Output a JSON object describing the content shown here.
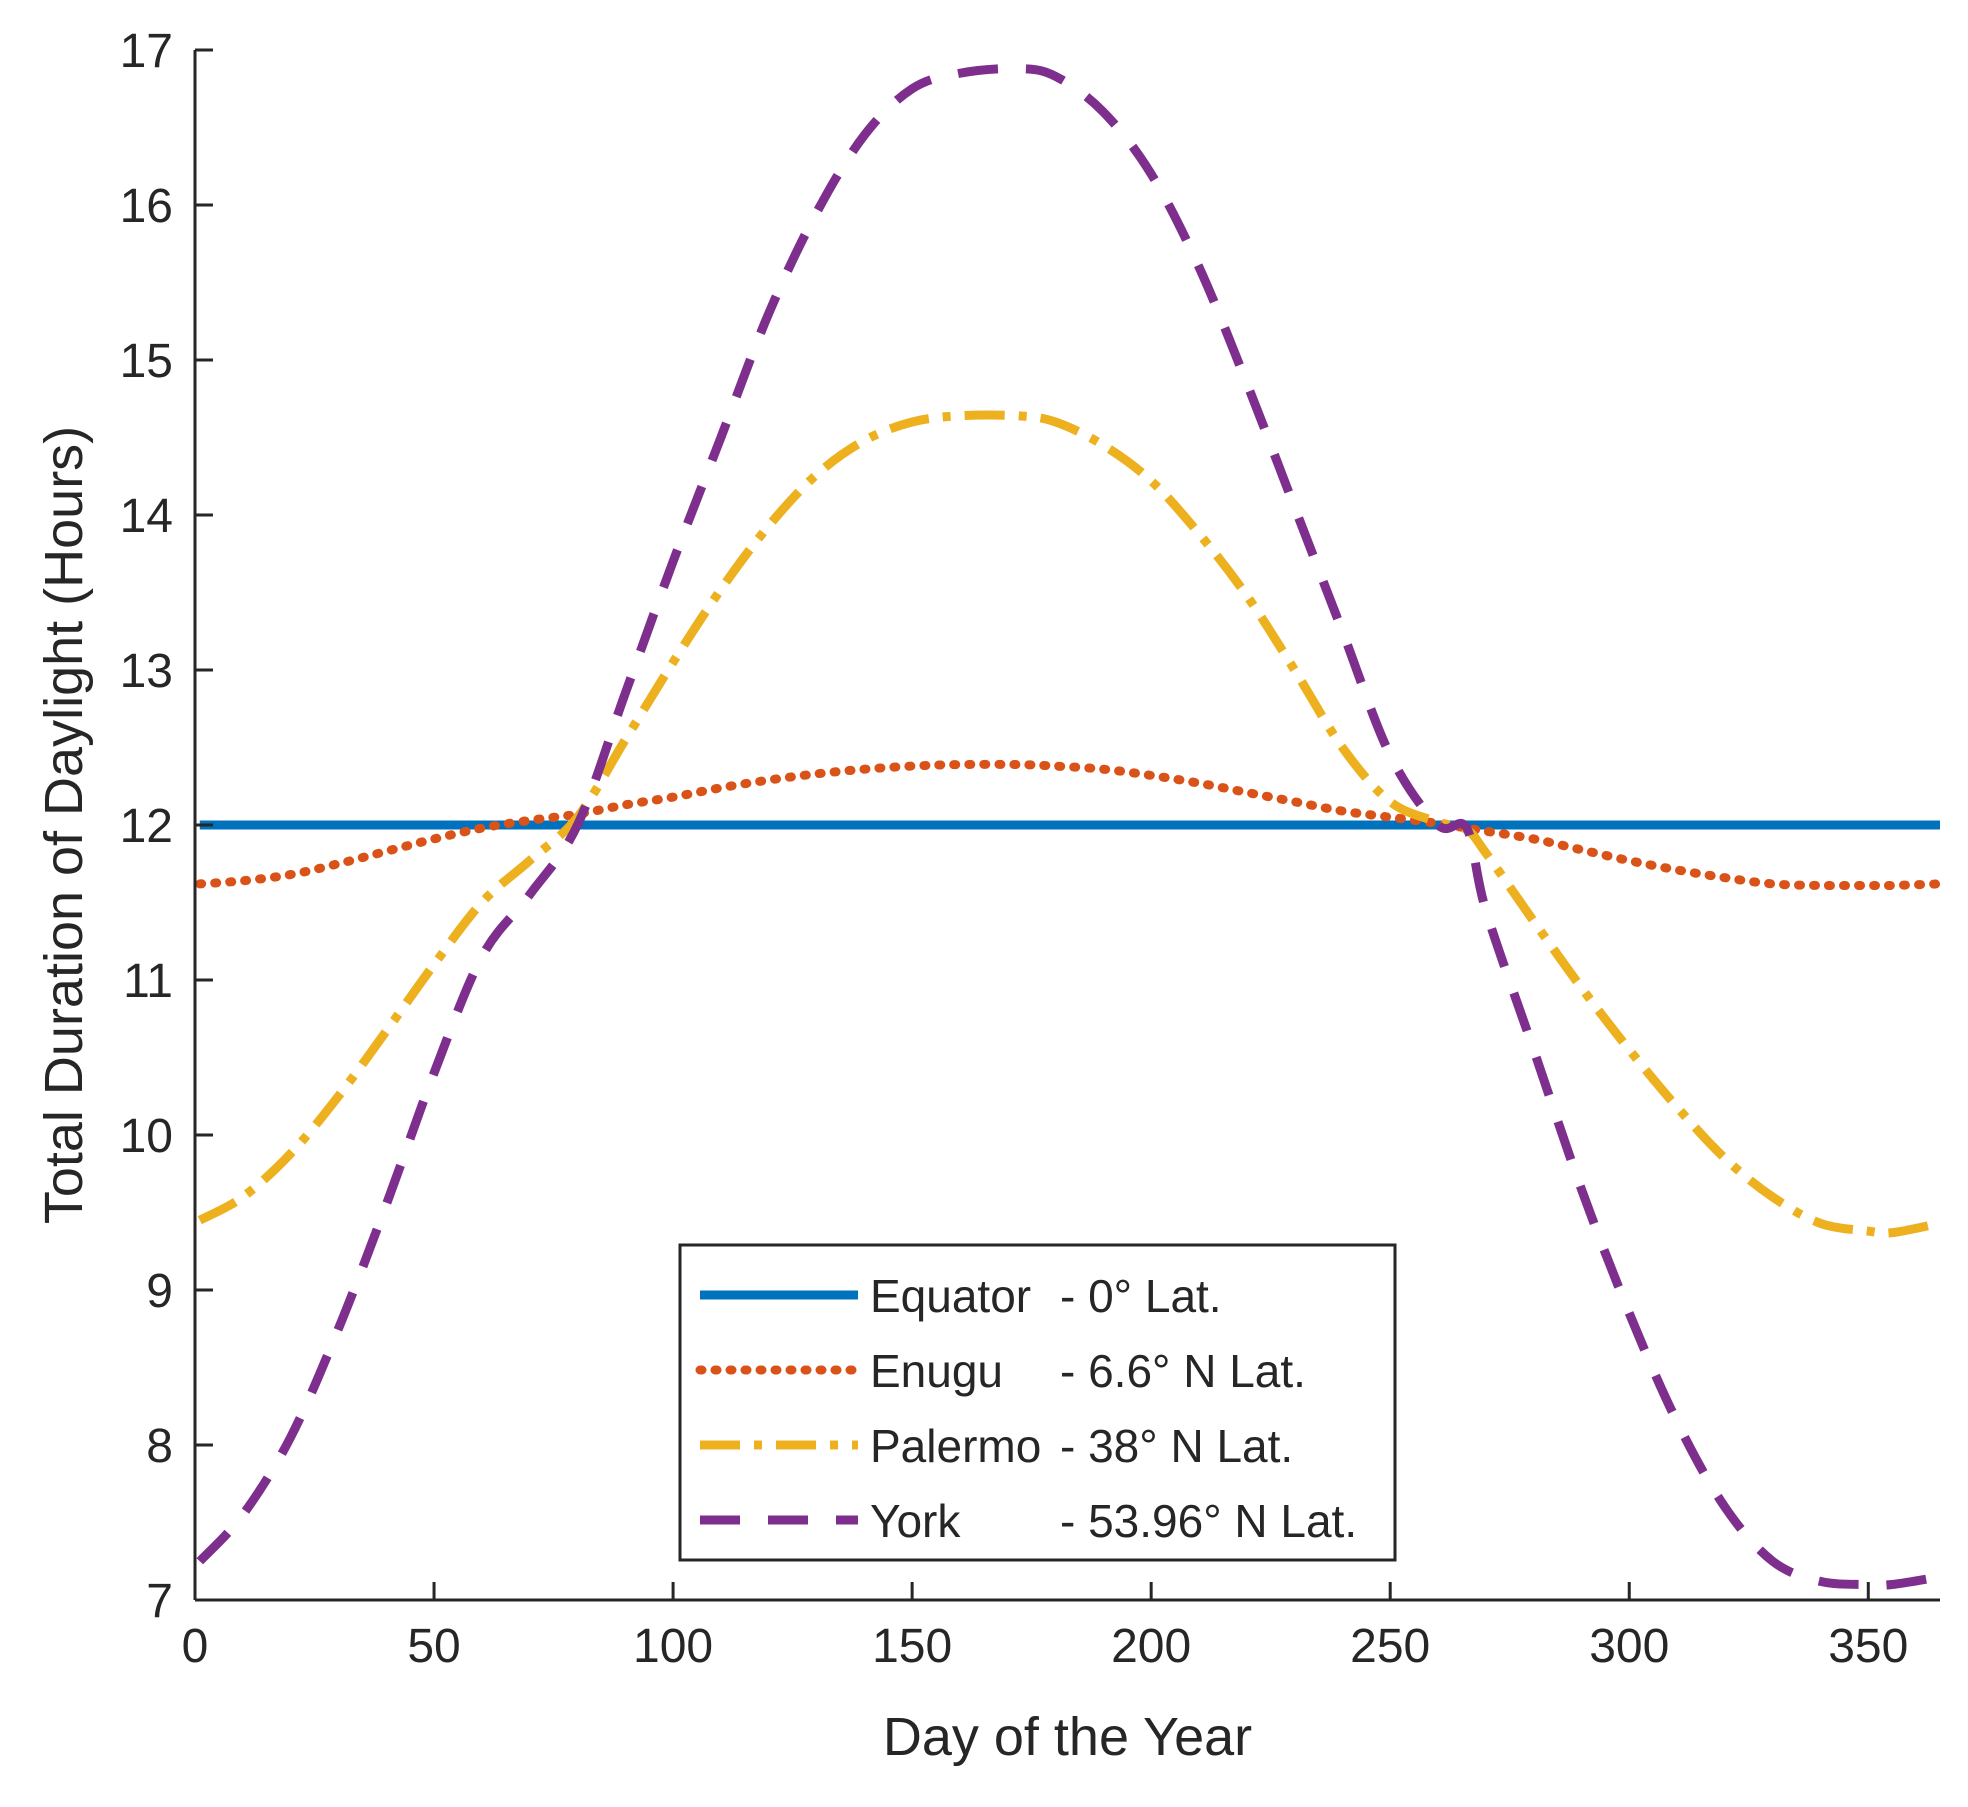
{
  "chart_data": {
    "type": "line",
    "title": "",
    "xlabel": "Day of the Year",
    "ylabel": "Total Duration of Daylight (Hours)",
    "xlim": [
      0,
      365
    ],
    "ylim": [
      7,
      17
    ],
    "xticks": [
      0,
      50,
      100,
      150,
      200,
      250,
      300,
      350
    ],
    "yticks": [
      7,
      8,
      9,
      10,
      11,
      12,
      13,
      14,
      15,
      16,
      17
    ],
    "grid": false,
    "legend_position": "bottom-center",
    "x": [
      1,
      10,
      20,
      30,
      40,
      50,
      60,
      70,
      80,
      90,
      100,
      110,
      120,
      130,
      140,
      150,
      160,
      172,
      180,
      190,
      200,
      210,
      220,
      230,
      240,
      250,
      260,
      266,
      270,
      280,
      290,
      300,
      310,
      320,
      330,
      340,
      350,
      355,
      365
    ],
    "series": [
      {
        "name": "Equator",
        "label_suffix": "- 0° Lat.",
        "color": "#0072BD",
        "dash": "solid",
        "values": [
          12,
          12,
          12,
          12,
          12,
          12,
          12,
          12,
          12,
          12,
          12,
          12,
          12,
          12,
          12,
          12,
          12,
          12,
          12,
          12,
          12,
          12,
          12,
          12,
          12,
          12,
          12,
          12,
          12,
          12,
          12,
          12,
          12,
          12,
          12,
          12,
          12,
          12,
          12
        ]
      },
      {
        "name": "Enugu",
        "label_suffix": "- 6.6° N Lat.",
        "color": "#D95319",
        "dash": "dotted",
        "values": [
          11.62,
          11.64,
          11.68,
          11.75,
          11.83,
          11.91,
          11.98,
          12.03,
          12.07,
          12.13,
          12.18,
          12.24,
          12.29,
          12.33,
          12.36,
          12.38,
          12.39,
          12.39,
          12.38,
          12.36,
          12.32,
          12.27,
          12.21,
          12.15,
          12.09,
          12.05,
          12.01,
          11.98,
          11.96,
          11.91,
          11.84,
          11.77,
          11.71,
          11.66,
          11.62,
          11.61,
          11.61,
          11.61,
          11.62
        ]
      },
      {
        "name": "Palermo",
        "label_suffix": "- 38° N Lat.",
        "color": "#EDB120",
        "dash": "dashdot",
        "values": [
          9.45,
          9.6,
          9.88,
          10.25,
          10.67,
          11.1,
          11.5,
          11.77,
          12.05,
          12.55,
          13.05,
          13.52,
          13.93,
          14.26,
          14.48,
          14.6,
          14.64,
          14.64,
          14.6,
          14.45,
          14.22,
          13.88,
          13.48,
          13.0,
          12.5,
          12.15,
          12.02,
          11.97,
          11.82,
          11.38,
          10.95,
          10.55,
          10.18,
          9.85,
          9.6,
          9.43,
          9.38,
          9.37,
          9.43
        ]
      },
      {
        "name": "York",
        "label_suffix": "- 53.96° N Lat.",
        "color": "#7E2F8E",
        "dash": "dashed",
        "values": [
          7.25,
          7.55,
          8.05,
          8.75,
          9.55,
          10.4,
          11.15,
          11.55,
          12.0,
          12.85,
          13.7,
          14.5,
          15.3,
          15.95,
          16.45,
          16.75,
          16.85,
          16.88,
          16.83,
          16.6,
          16.2,
          15.6,
          14.85,
          14.05,
          13.25,
          12.45,
          12.0,
          11.98,
          11.45,
          10.55,
          9.65,
          8.85,
          8.15,
          7.6,
          7.25,
          7.12,
          7.1,
          7.1,
          7.15
        ]
      }
    ]
  }
}
